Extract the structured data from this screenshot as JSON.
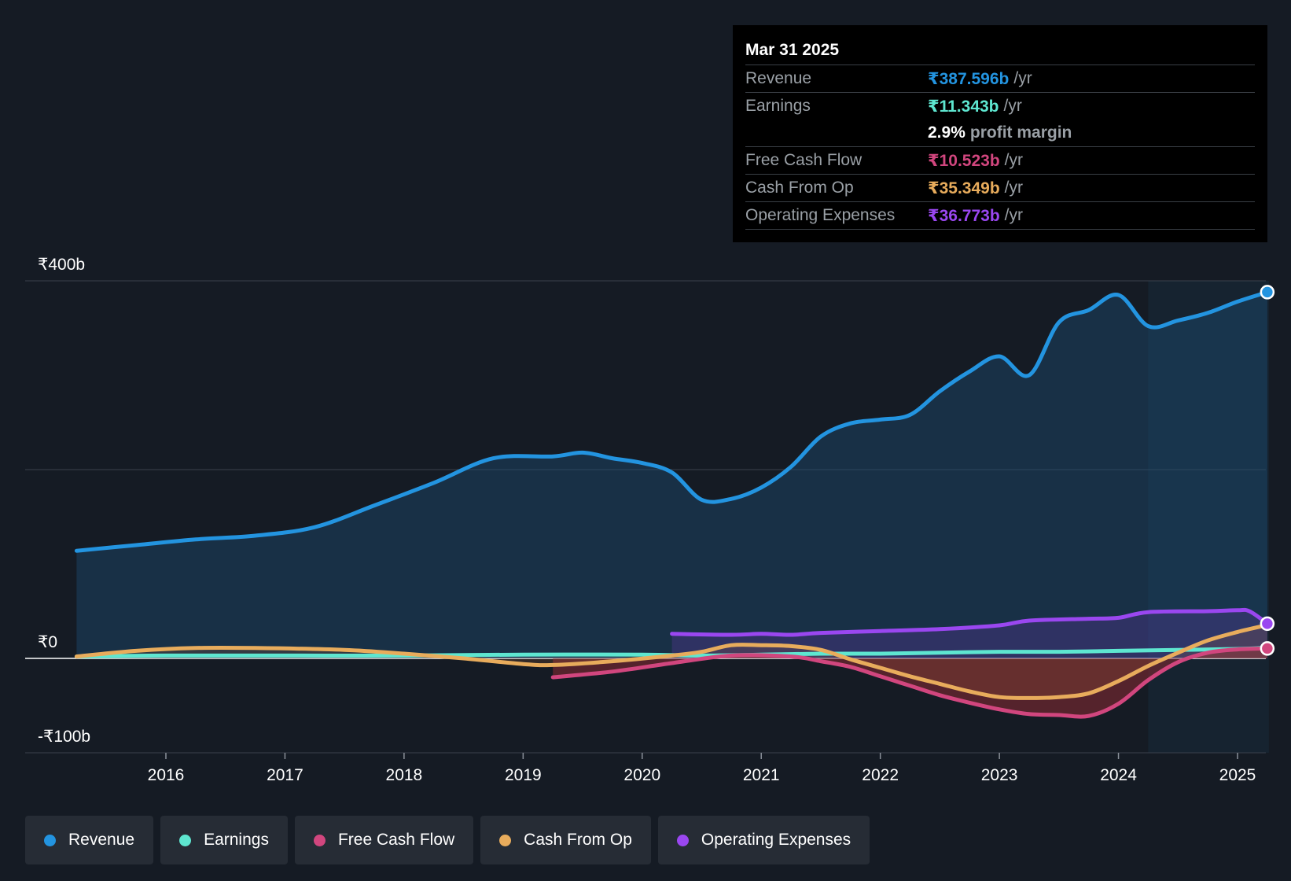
{
  "tooltip": {
    "date": "Mar 31 2025",
    "rows": [
      {
        "label": "Revenue",
        "value": "₹387.596b",
        "unit": "/yr",
        "color": "#2394e0"
      },
      {
        "label": "Earnings",
        "value": "₹11.343b",
        "unit": "/yr",
        "color": "#5ee6d0"
      },
      {
        "label": "Free Cash Flow",
        "value": "₹10.523b",
        "unit": "/yr",
        "color": "#d1467e"
      },
      {
        "label": "Cash From Op",
        "value": "₹35.349b",
        "unit": "/yr",
        "color": "#e8ac5c"
      },
      {
        "label": "Operating Expenses",
        "value": "₹36.773b",
        "unit": "/yr",
        "color": "#9a47f0"
      }
    ],
    "margin_value": "2.9%",
    "margin_text": "profit margin"
  },
  "legend": [
    {
      "label": "Revenue",
      "color": "#2394e0"
    },
    {
      "label": "Earnings",
      "color": "#5ee6d0"
    },
    {
      "label": "Free Cash Flow",
      "color": "#d1467e"
    },
    {
      "label": "Cash From Op",
      "color": "#e8ac5c"
    },
    {
      "label": "Operating Expenses",
      "color": "#9a47f0"
    }
  ],
  "chart_data": {
    "type": "line",
    "title": "",
    "xlabel": "",
    "ylabel": "",
    "ylim": [
      -100,
      400
    ],
    "xlim": [
      2015.3,
      2025.25
    ],
    "y_tick_labels": [
      {
        "value": 400,
        "label": "₹400b"
      },
      {
        "value": 0,
        "label": "₹0"
      },
      {
        "value": -100,
        "label": "-₹100b"
      }
    ],
    "x_ticks": [
      2016,
      2017,
      2018,
      2019,
      2020,
      2021,
      2022,
      2023,
      2024,
      2025
    ],
    "x_tick_labels": [
      "2016",
      "2017",
      "2018",
      "2019",
      "2020",
      "2021",
      "2022",
      "2023",
      "2024",
      "2025"
    ],
    "forecast_start": 2024.25,
    "series": [
      {
        "name": "Revenue",
        "color": "#2394e0",
        "fill": true,
        "points": [
          [
            2015.25,
            114
          ],
          [
            2015.75,
            120
          ],
          [
            2016.25,
            126
          ],
          [
            2016.75,
            130
          ],
          [
            2017.25,
            139
          ],
          [
            2017.75,
            162
          ],
          [
            2018.25,
            186
          ],
          [
            2018.75,
            212
          ],
          [
            2019.25,
            214
          ],
          [
            2019.5,
            218
          ],
          [
            2019.75,
            212
          ],
          [
            2020.0,
            207
          ],
          [
            2020.25,
            197
          ],
          [
            2020.5,
            168
          ],
          [
            2020.75,
            169
          ],
          [
            2021.0,
            181
          ],
          [
            2021.25,
            203
          ],
          [
            2021.5,
            235
          ],
          [
            2021.75,
            249
          ],
          [
            2022.0,
            253
          ],
          [
            2022.25,
            258
          ],
          [
            2022.5,
            283
          ],
          [
            2022.75,
            304
          ],
          [
            2023.0,
            320
          ],
          [
            2023.25,
            300
          ],
          [
            2023.5,
            356
          ],
          [
            2023.75,
            369
          ],
          [
            2024.0,
            385
          ],
          [
            2024.25,
            352
          ],
          [
            2024.5,
            358
          ],
          [
            2024.75,
            366
          ],
          [
            2025.0,
            378
          ],
          [
            2025.25,
            388
          ]
        ]
      },
      {
        "name": "Earnings",
        "color": "#5ee6d0",
        "points": [
          [
            2015.25,
            2
          ],
          [
            2016.0,
            3
          ],
          [
            2017.0,
            3
          ],
          [
            2018.0,
            3
          ],
          [
            2019.0,
            4
          ],
          [
            2020.0,
            4
          ],
          [
            2020.5,
            3
          ],
          [
            2021.0,
            4
          ],
          [
            2021.5,
            5
          ],
          [
            2022.0,
            5
          ],
          [
            2022.5,
            6
          ],
          [
            2023.0,
            7
          ],
          [
            2023.5,
            7
          ],
          [
            2024.0,
            8
          ],
          [
            2024.5,
            9
          ],
          [
            2025.0,
            10
          ],
          [
            2025.25,
            11.3
          ]
        ]
      },
      {
        "name": "Free Cash Flow",
        "color": "#d1467e",
        "points": [
          [
            2019.25,
            -20
          ],
          [
            2019.75,
            -14
          ],
          [
            2020.25,
            -5
          ],
          [
            2020.75,
            3
          ],
          [
            2021.25,
            2
          ],
          [
            2021.5,
            -3
          ],
          [
            2021.75,
            -9
          ],
          [
            2022.0,
            -19
          ],
          [
            2022.25,
            -29
          ],
          [
            2022.5,
            -39
          ],
          [
            2022.75,
            -47
          ],
          [
            2023.0,
            -54
          ],
          [
            2023.25,
            -59
          ],
          [
            2023.5,
            -60
          ],
          [
            2023.75,
            -61
          ],
          [
            2024.0,
            -48
          ],
          [
            2024.25,
            -23
          ],
          [
            2024.5,
            -4
          ],
          [
            2024.75,
            6
          ],
          [
            2025.0,
            9.5
          ],
          [
            2025.25,
            10.5
          ]
        ]
      },
      {
        "name": "Cash From Op",
        "color": "#e8ac5c",
        "points": [
          [
            2015.25,
            2
          ],
          [
            2015.75,
            8
          ],
          [
            2016.25,
            11
          ],
          [
            2016.75,
            11
          ],
          [
            2017.5,
            9
          ],
          [
            2018.0,
            5
          ],
          [
            2018.5,
            0
          ],
          [
            2019.0,
            -6
          ],
          [
            2019.25,
            -7
          ],
          [
            2019.75,
            -3
          ],
          [
            2020.25,
            3
          ],
          [
            2020.5,
            7
          ],
          [
            2020.75,
            14
          ],
          [
            2021.0,
            14
          ],
          [
            2021.25,
            13
          ],
          [
            2021.5,
            9
          ],
          [
            2021.75,
            -1
          ],
          [
            2022.0,
            -10
          ],
          [
            2022.25,
            -19
          ],
          [
            2022.5,
            -27
          ],
          [
            2022.75,
            -35
          ],
          [
            2023.0,
            -41
          ],
          [
            2023.25,
            -42
          ],
          [
            2023.5,
            -41
          ],
          [
            2023.75,
            -37
          ],
          [
            2024.0,
            -24
          ],
          [
            2024.25,
            -8
          ],
          [
            2024.5,
            6
          ],
          [
            2024.75,
            19
          ],
          [
            2025.0,
            28
          ],
          [
            2025.25,
            35.3
          ]
        ]
      },
      {
        "name": "Operating Expenses",
        "color": "#9a47f0",
        "points": [
          [
            2020.25,
            26
          ],
          [
            2020.75,
            25
          ],
          [
            2021.0,
            26
          ],
          [
            2021.25,
            25
          ],
          [
            2021.5,
            27
          ],
          [
            2022.0,
            29
          ],
          [
            2022.5,
            31
          ],
          [
            2023.0,
            35
          ],
          [
            2023.25,
            40
          ],
          [
            2023.75,
            42
          ],
          [
            2024.0,
            43
          ],
          [
            2024.25,
            49
          ],
          [
            2024.75,
            50
          ],
          [
            2025.0,
            51
          ],
          [
            2025.1,
            50
          ],
          [
            2025.25,
            36.8
          ]
        ]
      }
    ]
  }
}
